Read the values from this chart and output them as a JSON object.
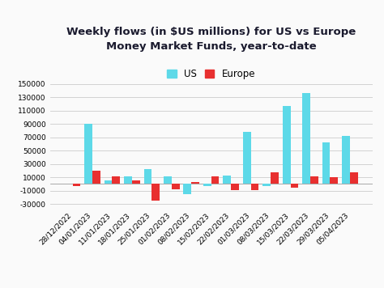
{
  "title_line1": "Weekly flows (in $US millions) for US vs Europe",
  "title_line2": "Money Market Funds, year-to-date",
  "categories": [
    "28/12/2022",
    "04/01/2023",
    "11/01/2023",
    "18/01/2023",
    "25/01/2023",
    "01/02/2023",
    "08/02/2023",
    "15/02/2023",
    "22/02/2023",
    "01/03/2023",
    "08/03/2023",
    "15/03/2023",
    "22/03/2023",
    "29/03/2023",
    "05/04/2023"
  ],
  "us_values": [
    0,
    90000,
    5000,
    12000,
    22000,
    11000,
    -15000,
    -3000,
    13000,
    78000,
    -3000,
    117000,
    137000,
    63000,
    72000
  ],
  "europe_values": [
    -3000,
    20000,
    11000,
    5000,
    -25000,
    -8000,
    3000,
    11000,
    -9000,
    -9000,
    17000,
    -5000,
    11000,
    10000,
    17000
  ],
  "us_color": "#5DD9E8",
  "europe_color": "#E83030",
  "background_color": "#FAFAFA",
  "grid_color": "#CCCCCC",
  "title_color": "#1A1A2E",
  "ylim": [
    -35000,
    155000
  ],
  "yticks": [
    -30000,
    -10000,
    10000,
    30000,
    50000,
    70000,
    90000,
    110000,
    130000,
    150000
  ],
  "bar_width": 0.4,
  "title_fontsize": 9.5,
  "tick_fontsize": 6.5,
  "legend_fontsize": 8.5
}
